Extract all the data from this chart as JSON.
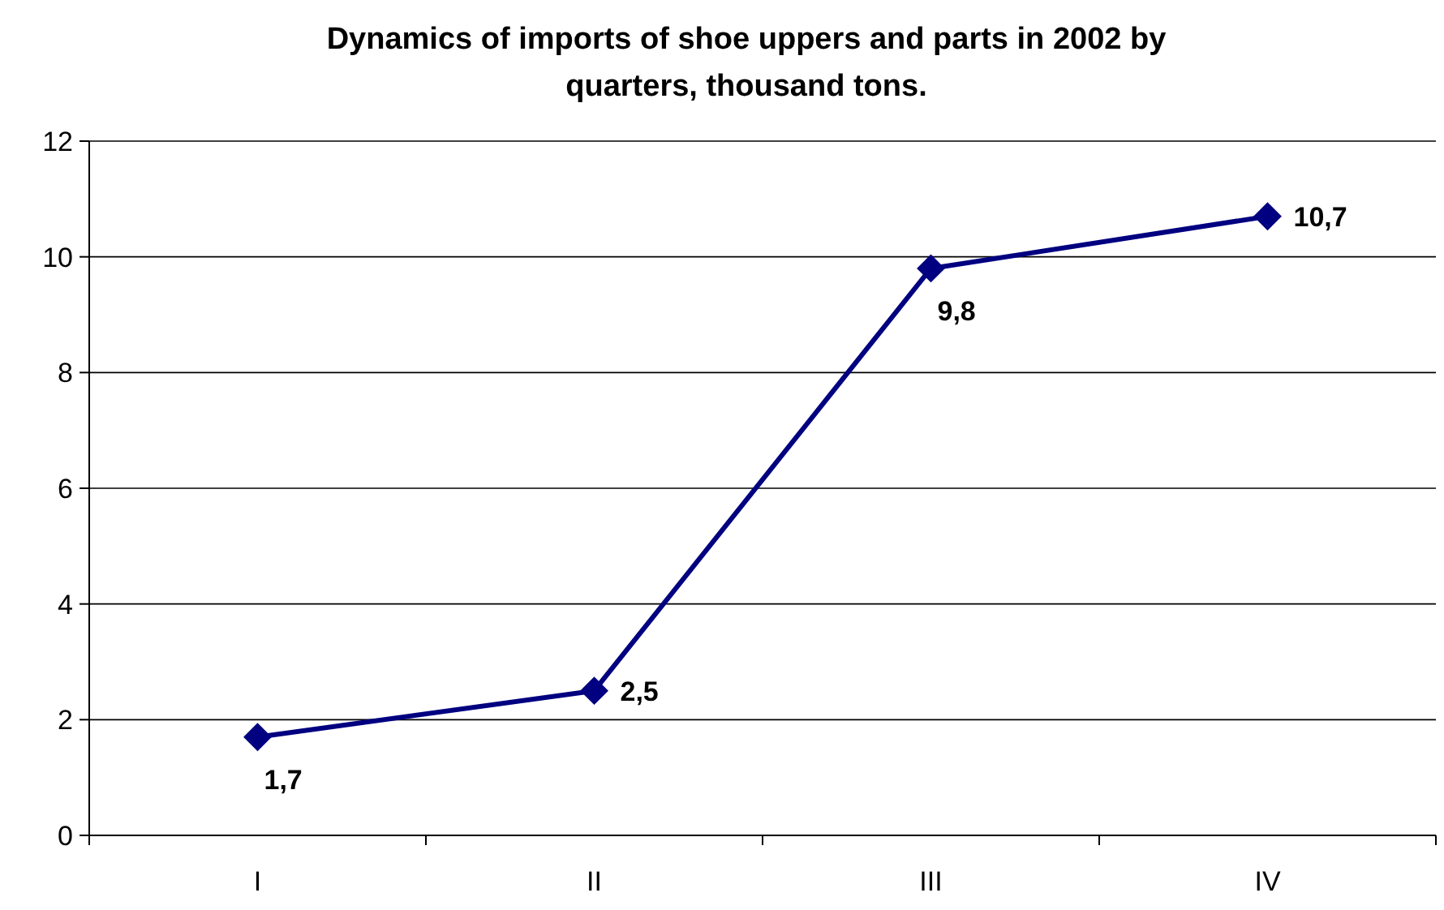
{
  "chart_data": {
    "type": "line",
    "title": "Dynamics of imports of shoe uppers and parts in 2002 by quarters, thousand tons.",
    "categories": [
      "I",
      "II",
      "III",
      "IV"
    ],
    "series": [
      {
        "color": "#000080",
        "values": [
          1.7,
          2.5,
          9.8,
          10.7
        ],
        "value_labels": [
          "1,7",
          "2,5",
          "9,8",
          "10,7"
        ]
      }
    ],
    "ylim": [
      0,
      12
    ],
    "yticks": [
      0,
      2,
      4,
      6,
      8,
      10,
      12
    ],
    "grid": "y",
    "marker": "diamond",
    "line_style": "solid"
  }
}
